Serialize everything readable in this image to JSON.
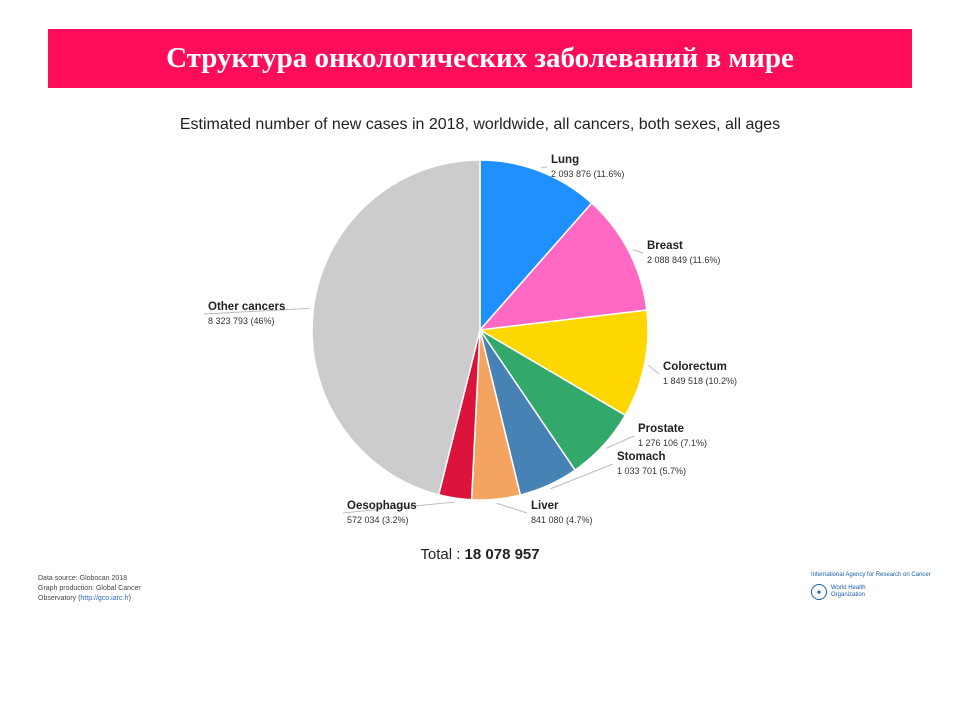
{
  "slide": {
    "title": "Структура онкологических заболеваний в мире"
  },
  "chart_data": {
    "type": "pie",
    "title": "Estimated number of new cases in 2018, worldwide, all cancers, both sexes, all ages",
    "total_label": "Total : ",
    "total_value": "18 078 957",
    "slices": [
      {
        "name": "Lung",
        "value": 2093876,
        "label": "2 093 876 (11.6%)",
        "color": "#1e90ff"
      },
      {
        "name": "Breast",
        "value": 2088849,
        "label": "2 088 849 (11.6%)",
        "color": "#ff69c4"
      },
      {
        "name": "Colorectum",
        "value": 1849518,
        "label": "1 849 518 (10.2%)",
        "color": "#ffd700"
      },
      {
        "name": "Prostate",
        "value": 1276106,
        "label": "1 276 106 (7.1%)",
        "color": "#33a86b"
      },
      {
        "name": "Stomach",
        "value": 1033701,
        "label": "1 033 701 (5.7%)",
        "color": "#4682b4"
      },
      {
        "name": "Liver",
        "value": 841080,
        "label": "841 080 (4.7%)",
        "color": "#f4a460"
      },
      {
        "name": "Oesophagus",
        "value": 572034,
        "label": "572 034 (3.2%)",
        "color": "#dc143c"
      },
      {
        "name": "Other cancers",
        "value": 8323793,
        "label": "8 323 793 (46%)",
        "color": "#cccccc"
      }
    ]
  },
  "footer": {
    "source_line1": "Data source: Globocan 2018",
    "source_line2": "Graph production: Global Cancer",
    "source_line3_prefix": "Observatory (",
    "source_link": "http://gco.iarc.fr",
    "source_line3_suffix": ")",
    "iarc_name": "International Agency for Research on Cancer",
    "who_name": "World Health Organization"
  }
}
